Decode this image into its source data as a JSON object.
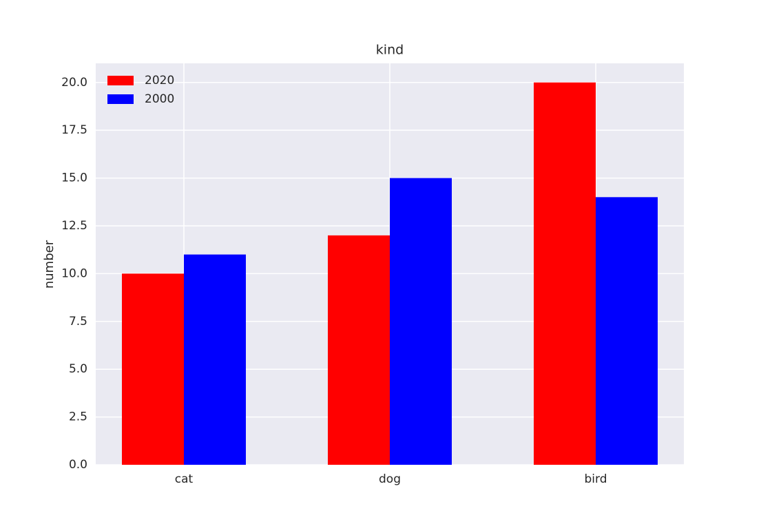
{
  "chart_data": {
    "type": "bar",
    "title": "kind",
    "y_label": "number",
    "categories": [
      "cat",
      "dog",
      "bird"
    ],
    "series": [
      {
        "name": "2020",
        "color": "#ff0000",
        "values": [
          10,
          12,
          20
        ]
      },
      {
        "name": "2000",
        "color": "#0000ff",
        "values": [
          11,
          15,
          14
        ]
      }
    ],
    "ylim": [
      0,
      21
    ],
    "yticks": [
      {
        "value": 0,
        "label": "0.0"
      },
      2.5,
      {
        "value": 5,
        "label": "5.0"
      },
      7.5,
      {
        "value": 10,
        "label": "10.0"
      },
      12.5,
      {
        "value": 15,
        "label": "15.0"
      },
      17.5,
      {
        "value": 20,
        "label": "20.0"
      }
    ],
    "grid": true,
    "legend": "upper left"
  }
}
